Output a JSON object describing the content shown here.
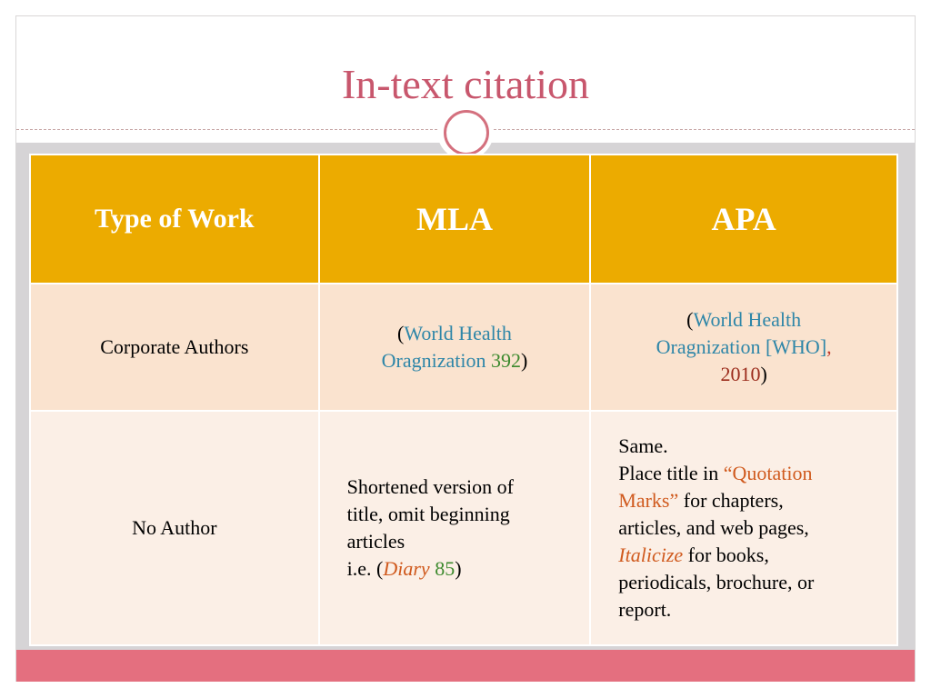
{
  "slide": {
    "title": "In-text citation"
  },
  "table": {
    "headers": {
      "type": "Type of Work",
      "mla": "MLA",
      "apa": "APA"
    },
    "row_corporate": {
      "type": "Corporate Authors",
      "mla": {
        "open": "(",
        "name_line1": "World Health",
        "name_line2": "Oragnization",
        "page": "392",
        "close": ")"
      },
      "apa": {
        "open": "(",
        "name_line1": "World Health",
        "name_line2": "Oragnization [WHO]",
        "comma": ",",
        "year": "2010",
        "close": ")"
      }
    },
    "row_no_author": {
      "type": "No Author",
      "mla": {
        "line1": "Shortened version of",
        "line2": "title, omit beginning",
        "line3": "articles",
        "ie_prefix": "i.e. (",
        "title": "Diary",
        "page": "85",
        "close": ")"
      },
      "apa": {
        "line1": "Same.",
        "place_prefix": "Place title in ",
        "quote_part1": "“Quotation",
        "quote_part2": "Marks”",
        "for_chapters": " for chapters,",
        "articles": "articles, and web pages,",
        "italicize": "Italicize",
        "for_books": " for books,",
        "periodicals": "periodicals, brochure, or",
        "report": "report."
      }
    }
  },
  "colors": {
    "title": "#c8576d",
    "header_bg": "#ecab00",
    "row1_bg": "#fae3cf",
    "row2_bg": "#fbefe6",
    "accent_blue": "#2e86a8",
    "accent_green": "#3d8a2e",
    "accent_red": "#c0392b",
    "accent_orange": "#d05a1e",
    "footer_bar": "#e46f7f"
  }
}
